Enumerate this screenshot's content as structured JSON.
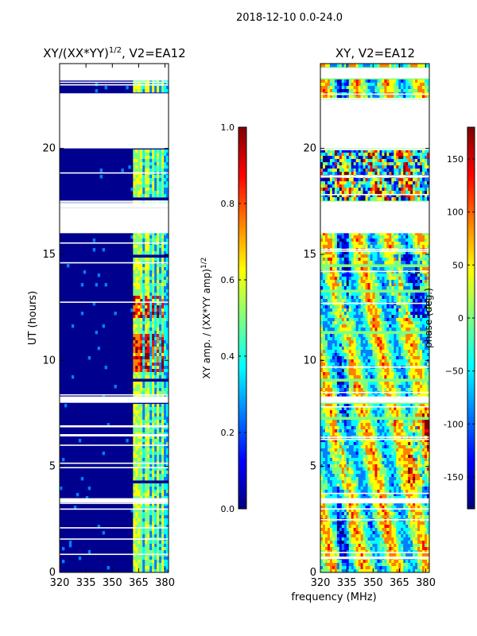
{
  "suptitle": "2018-12-10 0.0-24.0",
  "xlabel": "frequency (MHz)",
  "colors": {
    "background": "#00008f",
    "jet": [
      "#00007f",
      "#0000ff",
      "#007fff",
      "#00ffff",
      "#7fff7f",
      "#ffff00",
      "#ff7f00",
      "#ff0000",
      "#7f0000"
    ]
  },
  "chart_data": [
    {
      "type": "heatmap",
      "title_main": "XY/(XX*YY)",
      "title_sup": "1/2",
      "title_tail": ", V2=EA12",
      "ylabel": "UT (hours)",
      "xlim": [
        320,
        382
      ],
      "ylim": [
        0,
        24
      ],
      "xticks": [
        "320",
        "335",
        "350",
        "365",
        "380"
      ],
      "yticks": [
        "0",
        "5",
        "10",
        "15",
        "20"
      ],
      "colorbar": {
        "label_main": "XY amp. / (XX*YY amp)",
        "label_sup": "1/2",
        "range": [
          0.0,
          1.0
        ],
        "ticks": [
          "0.0",
          "0.2",
          "0.4",
          "0.6",
          "0.8",
          "1.0"
        ]
      },
      "flagged_hours": [
        [
          17.2,
          17.4
        ],
        [
          16.0,
          17.2
        ],
        [
          20.0,
          22.6
        ],
        [
          23.2,
          24.0
        ],
        [
          8.0,
          8.3
        ],
        [
          3.3,
          3.5
        ]
      ],
      "high_columns_mhz": [
        363,
        366,
        370,
        373,
        376,
        379
      ],
      "peak_intervals": [
        [
          9.5,
          11.3
        ],
        [
          12.0,
          13.0
        ]
      ]
    },
    {
      "type": "heatmap",
      "title": "XY, V2=EA12",
      "xlim": [
        320,
        382
      ],
      "ylim": [
        0,
        24
      ],
      "xticks": [
        "320",
        "335",
        "350",
        "365",
        "380"
      ],
      "yticks": [
        "0",
        "5",
        "10",
        "15",
        "20"
      ],
      "colorbar": {
        "label": "phase (deg.)",
        "range": [
          -180,
          180
        ],
        "ticks": [
          "-150",
          "-100",
          "−50",
          "0",
          "50",
          "100",
          "150"
        ]
      },
      "flagged_hours": [
        [
          16.0,
          17.5
        ],
        [
          20.0,
          22.3
        ],
        [
          23.3,
          23.8
        ],
        [
          8.0,
          8.3
        ],
        [
          3.3,
          3.5
        ]
      ]
    }
  ]
}
